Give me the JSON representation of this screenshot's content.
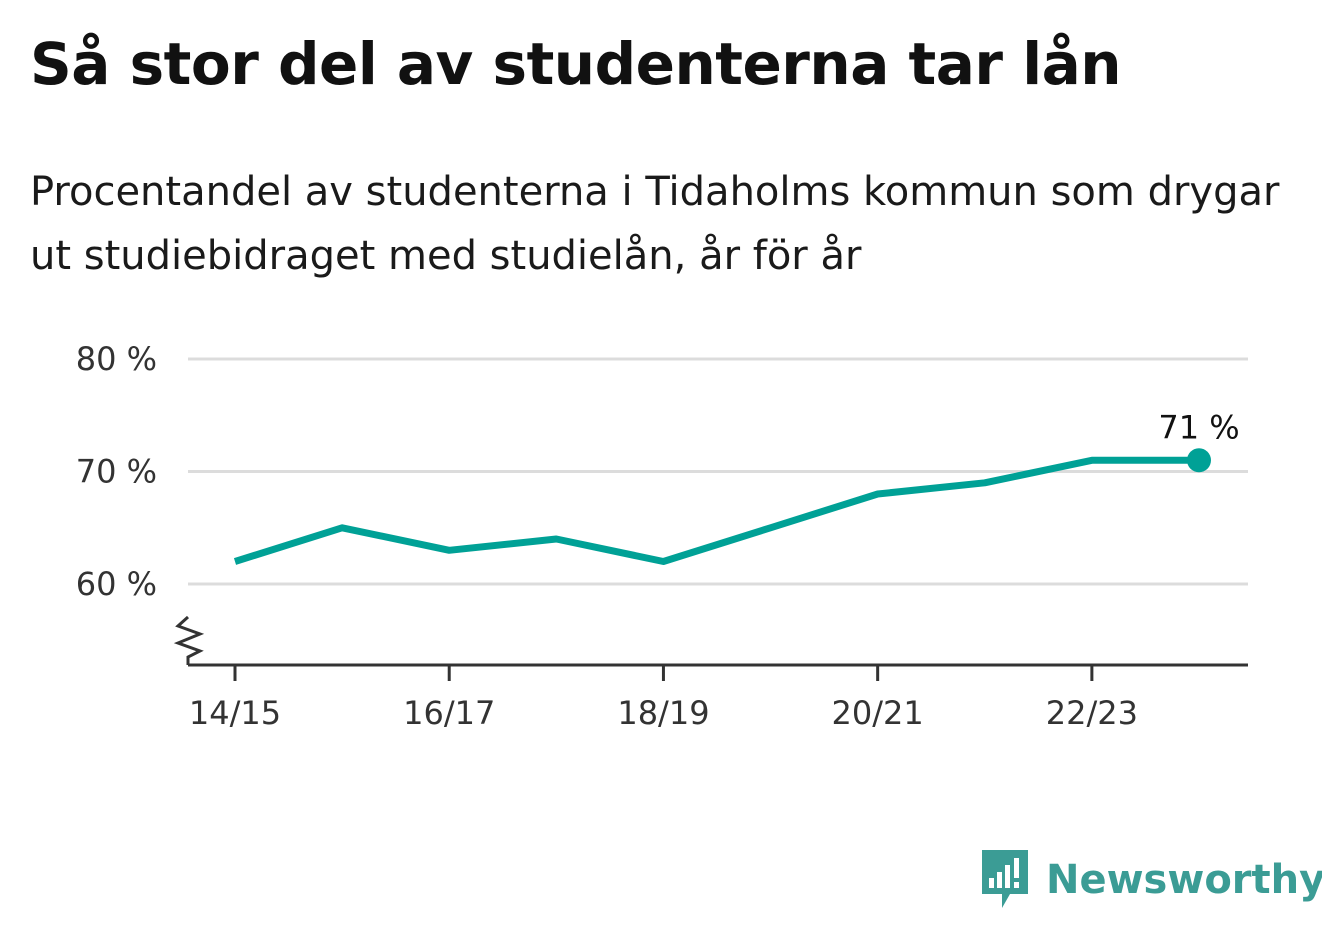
{
  "title": "Så stor del av studenterna tar lån",
  "subtitle": "Procentandel av studenterna i Tidaholms kommun som drygar ut studiebidraget med studielån, år för år",
  "logo": {
    "text": "Newsworthy",
    "icon": "bar-chart-speech-bubble-icon",
    "color": "#3b9c95"
  },
  "chart_data": {
    "type": "line",
    "x": [
      "14/15",
      "15/16",
      "16/17",
      "17/18",
      "18/19",
      "19/20",
      "20/21",
      "21/22",
      "22/23",
      "23/24"
    ],
    "values": [
      62,
      65,
      63,
      64,
      62,
      65,
      68,
      69,
      71,
      71
    ],
    "y_ticks": [
      60,
      70,
      80
    ],
    "y_tick_labels": [
      "60 %",
      "70 %",
      "80 %"
    ],
    "x_tick_labels": [
      "14/15",
      "16/17",
      "18/19",
      "20/21",
      "22/23"
    ],
    "x_tick_indices": [
      0,
      2,
      4,
      6,
      8
    ],
    "ylim": [
      53,
      80
    ],
    "y_axis_break": true,
    "grid": true,
    "end_label": "71 %",
    "line_color": "#00a196",
    "grid_color": "#dcdcdc",
    "axis_color": "#333333"
  }
}
